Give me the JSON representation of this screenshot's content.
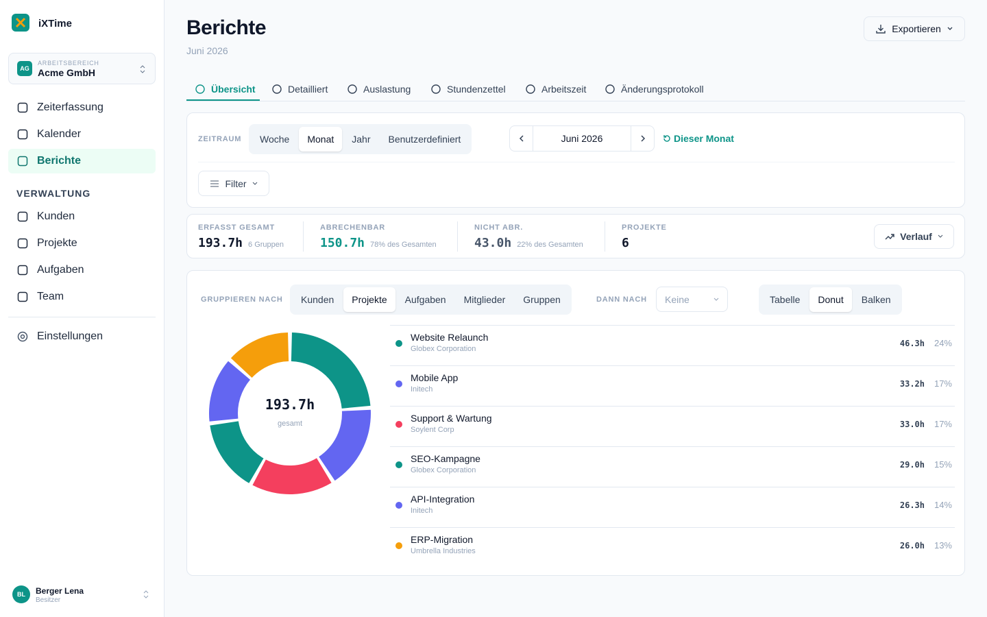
{
  "sidebar": {
    "brand": "iXTime",
    "workspace_label": "ARBEITSBEREICH",
    "workspace": "Acme GmbH",
    "workspace_initials": "AG",
    "nav": [
      "Zeiterfassung",
      "Kalender",
      "Berichte"
    ],
    "section": "VERWALTUNG",
    "admin_nav": [
      "Kunden",
      "Projekte",
      "Aufgaben",
      "Team"
    ],
    "settings": "Einstellungen",
    "user": {
      "initials": "BL",
      "name": "Berger Lena",
      "role": "Besitzer"
    }
  },
  "header": {
    "title": "Berichte",
    "subtitle": "Juni 2026",
    "export": "Exportieren"
  },
  "tabs": [
    "Übersicht",
    "Detailliert",
    "Auslastung",
    "Stundenzettel",
    "Arbeitszeit",
    "Änderungsprotokoll"
  ],
  "filters": {
    "period_label": "ZEITRAUM",
    "periods": [
      "Woche",
      "Monat",
      "Jahr",
      "Benutzerdefiniert"
    ],
    "month": "Juni 2026",
    "this_month": "Dieser Monat",
    "filter": "Filter"
  },
  "stats": [
    {
      "label": "ERFASST GESAMT",
      "value": "193.7h",
      "note": "6 Gruppen"
    },
    {
      "label": "ABRECHENBAR",
      "value": "150.7h",
      "note": "78% des Gesamten"
    },
    {
      "label": "NICHT ABR.",
      "value": "43.0h",
      "note": "22% des Gesamten"
    },
    {
      "label": "PROJEKTE",
      "value": "6"
    }
  ],
  "trend": "Verlauf",
  "grouping": {
    "label": "GRUPPIEREN NACH",
    "options": [
      "Kunden",
      "Projekte",
      "Aufgaben",
      "Mitglieder",
      "Gruppen"
    ],
    "then_label": "DANN NACH",
    "then_value": "Keine",
    "views": [
      "Tabelle",
      "Donut",
      "Balken"
    ]
  },
  "donut": {
    "total": "193.7h",
    "total_label": "gesamt",
    "items": [
      {
        "name": "Website Relaunch",
        "client": "Globex Corporation",
        "hours": 46.3,
        "hours_label": "46.3h",
        "share": "24%",
        "color": "#0d9488"
      },
      {
        "name": "Mobile App",
        "client": "Initech",
        "hours": 33.2,
        "hours_label": "33.2h",
        "share": "17%",
        "color": "#6366f1"
      },
      {
        "name": "Support & Wartung",
        "client": "Soylent Corp",
        "hours": 33.0,
        "hours_label": "33.0h",
        "share": "17%",
        "color": "#f43f5e"
      },
      {
        "name": "SEO-Kampagne",
        "client": "Globex Corporation",
        "hours": 29.0,
        "hours_label": "29.0h",
        "share": "15%",
        "color": "#0d9488"
      },
      {
        "name": "API-Integration",
        "client": "Initech",
        "hours": 26.3,
        "hours_label": "26.3h",
        "share": "14%",
        "color": "#6366f1"
      },
      {
        "name": "ERP-Migration",
        "client": "Umbrella Industries",
        "hours": 26.0,
        "hours_label": "26.0h",
        "share": "13%",
        "color": "#f59e0b"
      }
    ]
  }
}
